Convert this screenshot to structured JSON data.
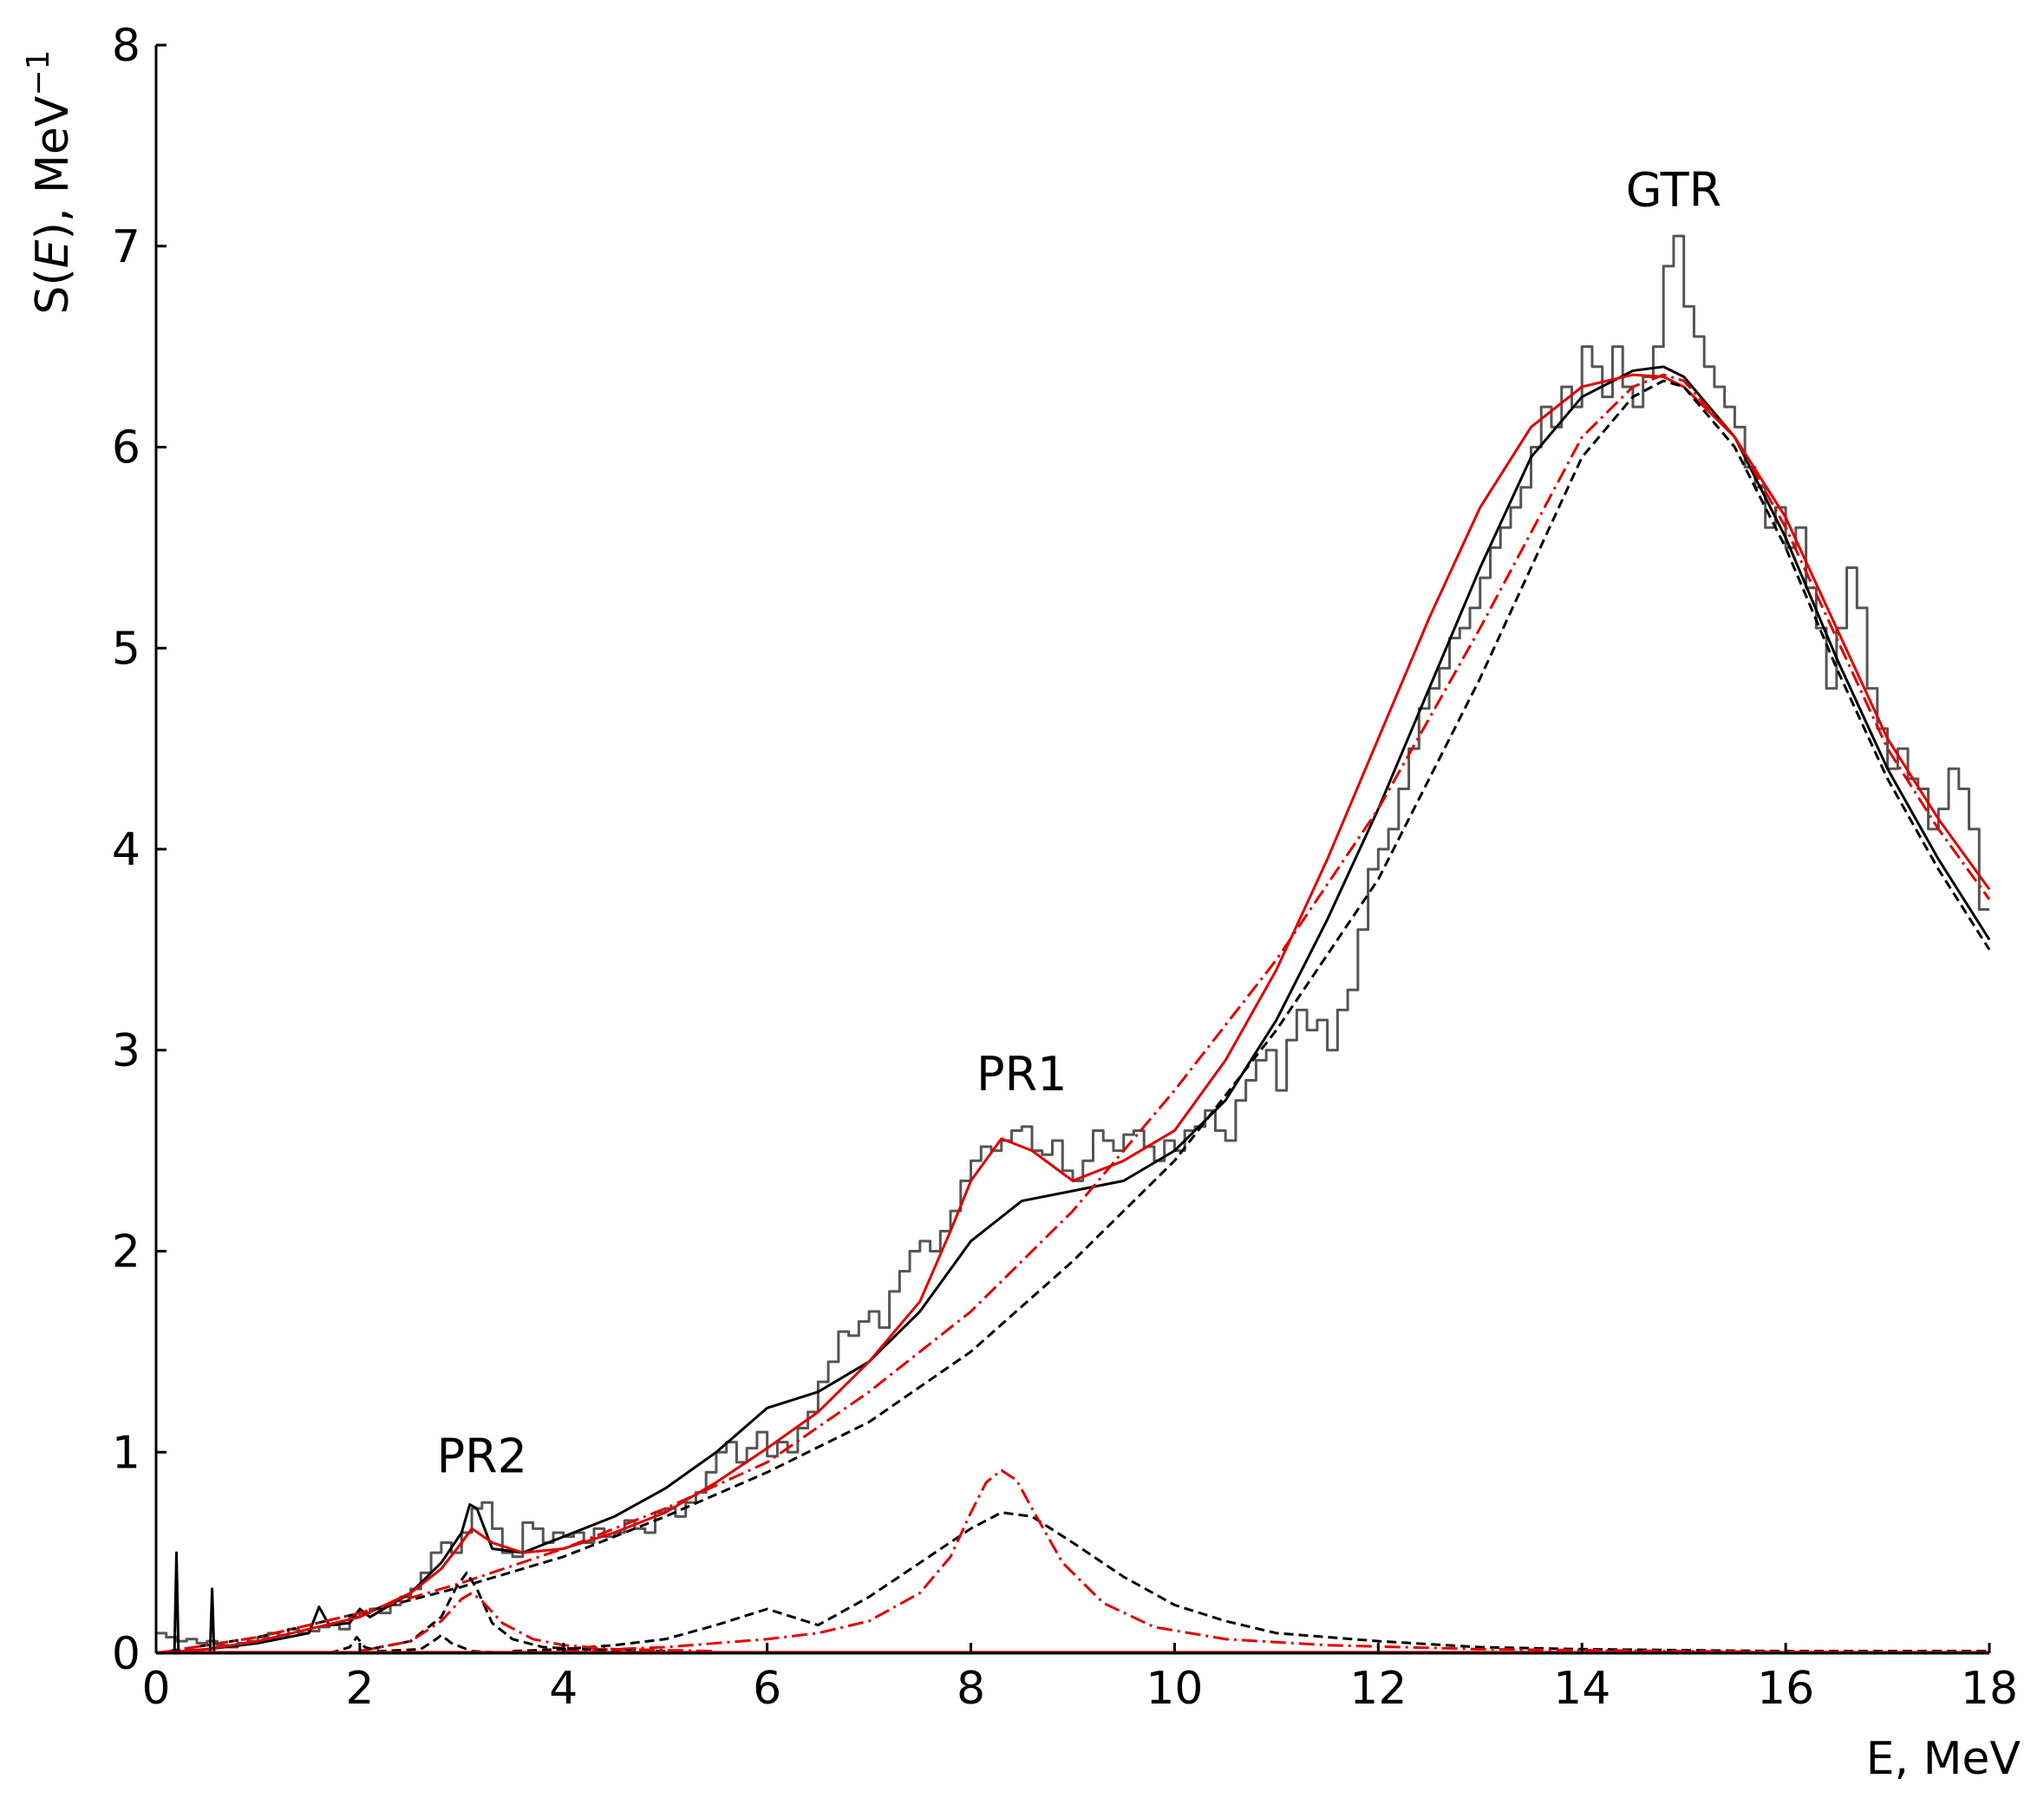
{
  "chart_data": {
    "type": "line",
    "xlabel": "E, MeV",
    "ylabel_prefix": "S(",
    "ylabel_var": "E",
    "ylabel_suffix": "), MeV",
    "ylabel_sup": "−1",
    "xlim": [
      0,
      18
    ],
    "ylim": [
      0,
      8
    ],
    "xticks": [
      0,
      2,
      4,
      6,
      8,
      10,
      12,
      14,
      16,
      18
    ],
    "yticks": [
      0,
      1,
      2,
      3,
      4,
      5,
      6,
      7,
      8
    ],
    "grid": false,
    "colors": {
      "experiment": "#555555",
      "black": "#000000",
      "red": "#e00000"
    },
    "annotations": [
      {
        "text": "GTR",
        "x": 14.9,
        "y": 7.2
      },
      {
        "text": "PR1",
        "x": 8.5,
        "y": 2.8
      },
      {
        "text": "PR2",
        "x": 3.2,
        "y": 0.9
      }
    ],
    "series": [
      {
        "style": "step",
        "color": "experiment",
        "bin_width": 0.1,
        "x": [
          0,
          0.1,
          0.2,
          0.3,
          0.4,
          0.5,
          0.6,
          0.7,
          0.8,
          0.9,
          1,
          1.1,
          1.2,
          1.3,
          1.4,
          1.5,
          1.6,
          1.7,
          1.8,
          1.9,
          2,
          2.1,
          2.2,
          2.3,
          2.4,
          2.5,
          2.6,
          2.7,
          2.8,
          2.9,
          3,
          3.1,
          3.2,
          3.3,
          3.4,
          3.5,
          3.6,
          3.7,
          3.8,
          3.9,
          4,
          4.1,
          4.2,
          4.3,
          4.4,
          4.5,
          4.6,
          4.7,
          4.8,
          4.9,
          5,
          5.1,
          5.2,
          5.3,
          5.4,
          5.5,
          5.6,
          5.7,
          5.8,
          5.9,
          6,
          6.1,
          6.2,
          6.3,
          6.4,
          6.5,
          6.6,
          6.7,
          6.8,
          6.9,
          7,
          7.1,
          7.2,
          7.3,
          7.4,
          7.5,
          7.6,
          7.7,
          7.8,
          7.9,
          8,
          8.1,
          8.2,
          8.3,
          8.4,
          8.5,
          8.6,
          8.7,
          8.8,
          8.9,
          9,
          9.1,
          9.2,
          9.3,
          9.4,
          9.5,
          9.6,
          9.7,
          9.8,
          9.9,
          10,
          10.1,
          10.2,
          10.3,
          10.4,
          10.5,
          10.6,
          10.7,
          10.8,
          10.9,
          11,
          11.1,
          11.2,
          11.3,
          11.4,
          11.5,
          11.6,
          11.7,
          11.8,
          11.9,
          12,
          12.1,
          12.2,
          12.3,
          12.4,
          12.5,
          12.6,
          12.7,
          12.8,
          12.9,
          13,
          13.1,
          13.2,
          13.3,
          13.4,
          13.5,
          13.6,
          13.7,
          13.8,
          13.9,
          14,
          14.1,
          14.2,
          14.3,
          14.4,
          14.5,
          14.6,
          14.7,
          14.8,
          14.9,
          15,
          15.1,
          15.2,
          15.3,
          15.4,
          15.5,
          15.6,
          15.7,
          15.8,
          15.9,
          16,
          16.1,
          16.2,
          16.3,
          16.4,
          16.5,
          16.6,
          16.7,
          16.8,
          16.9,
          17,
          17.1,
          17.2,
          17.3,
          17.4,
          17.5,
          17.6,
          17.7,
          17.8,
          17.9
        ],
        "y": [
          0.1,
          0.08,
          0.06,
          0.07,
          0.05,
          0.06,
          0.04,
          0.03,
          0.05,
          0.06,
          0.08,
          0.1,
          0.09,
          0.12,
          0.1,
          0.11,
          0.13,
          0.14,
          0.12,
          0.18,
          0.2,
          0.22,
          0.2,
          0.24,
          0.28,
          0.32,
          0.4,
          0.5,
          0.55,
          0.5,
          0.6,
          0.72,
          0.75,
          0.62,
          0.5,
          0.48,
          0.65,
          0.62,
          0.55,
          0.6,
          0.58,
          0.6,
          0.55,
          0.62,
          0.58,
          0.6,
          0.66,
          0.62,
          0.6,
          0.7,
          0.72,
          0.68,
          0.75,
          0.8,
          0.9,
          1.0,
          1.05,
          0.95,
          1.02,
          1.1,
          0.98,
          1.05,
          1.0,
          1.12,
          1.2,
          1.35,
          1.45,
          1.6,
          1.58,
          1.65,
          1.7,
          1.62,
          1.8,
          1.9,
          2.0,
          2.05,
          2.0,
          2.1,
          2.2,
          2.35,
          2.45,
          2.52,
          2.5,
          2.55,
          2.6,
          2.62,
          2.5,
          2.48,
          2.55,
          2.4,
          2.35,
          2.45,
          2.6,
          2.55,
          2.5,
          2.58,
          2.6,
          2.52,
          2.45,
          2.55,
          2.5,
          2.6,
          2.62,
          2.7,
          2.6,
          2.55,
          2.75,
          2.85,
          2.95,
          3.0,
          2.8,
          3.05,
          3.2,
          3.1,
          3.15,
          3.0,
          3.2,
          3.3,
          3.6,
          3.9,
          4.0,
          4.1,
          4.3,
          4.5,
          4.7,
          4.8,
          4.9,
          5.05,
          5.1,
          5.2,
          5.35,
          5.5,
          5.6,
          5.7,
          5.8,
          6.0,
          6.2,
          6.1,
          6.3,
          6.2,
          6.5,
          6.4,
          6.25,
          6.5,
          6.3,
          6.2,
          6.35,
          6.5,
          6.9,
          7.05,
          6.7,
          6.55,
          6.4,
          6.3,
          6.2,
          6.1,
          5.9,
          5.8,
          5.6,
          5.7,
          5.5,
          5.6,
          5.3,
          5.1,
          4.8,
          5.1,
          5.4,
          5.2,
          4.8,
          4.6,
          4.4,
          4.5,
          4.35,
          4.3,
          4.1,
          4.2,
          4.4,
          4.3,
          4.1,
          3.7
        ]
      },
      {
        "style": "solid",
        "color": "black",
        "x": [
          0,
          0.5,
          1,
          1.5,
          1.6,
          1.7,
          1.9,
          2,
          2.1,
          2.5,
          2.8,
          3.0,
          3.08,
          3.15,
          3.3,
          3.6,
          4,
          4.5,
          5,
          5.5,
          6,
          6.5,
          7,
          7.5,
          8,
          8.5,
          9,
          9.5,
          10,
          10.5,
          11,
          11.5,
          12,
          12.5,
          13,
          13.5,
          14,
          14.5,
          14.8,
          15,
          15.5,
          16,
          16.5,
          17,
          17.5,
          18
        ],
        "y": [
          0,
          0.02,
          0.05,
          0.1,
          0.23,
          0.14,
          0.15,
          0.22,
          0.18,
          0.3,
          0.45,
          0.6,
          0.74,
          0.72,
          0.52,
          0.5,
          0.58,
          0.68,
          0.82,
          1.0,
          1.22,
          1.3,
          1.45,
          1.7,
          2.05,
          2.25,
          2.3,
          2.35,
          2.5,
          2.75,
          3.15,
          3.65,
          4.2,
          4.8,
          5.4,
          5.95,
          6.25,
          6.38,
          6.4,
          6.35,
          6.05,
          5.55,
          4.95,
          4.4,
          3.95,
          3.55
        ]
      },
      {
        "style": "solid",
        "color": "red",
        "x": [
          0,
          0.5,
          1,
          1.5,
          2,
          2.5,
          2.8,
          3.0,
          3.1,
          3.3,
          3.6,
          4,
          4.5,
          5,
          5.5,
          6,
          6.5,
          7,
          7.5,
          7.8,
          8.0,
          8.3,
          8.6,
          9.0,
          9.5,
          10,
          10.5,
          11,
          11.5,
          12,
          12.5,
          13,
          13.5,
          14,
          14.5,
          14.8,
          15,
          15.5,
          16,
          16.5,
          17,
          17.5,
          18
        ],
        "y": [
          0,
          0.02,
          0.06,
          0.12,
          0.18,
          0.3,
          0.42,
          0.55,
          0.62,
          0.55,
          0.5,
          0.52,
          0.6,
          0.7,
          0.85,
          1.02,
          1.2,
          1.45,
          1.75,
          2.1,
          2.35,
          2.56,
          2.5,
          2.35,
          2.45,
          2.6,
          2.95,
          3.4,
          3.95,
          4.55,
          5.15,
          5.7,
          6.1,
          6.3,
          6.36,
          6.35,
          6.3,
          6.05,
          5.65,
          5.1,
          4.55,
          4.15,
          3.8
        ]
      },
      {
        "style": "dashed",
        "color": "black",
        "x": [
          0,
          1,
          2,
          3,
          4,
          5,
          6,
          7,
          8,
          9,
          10,
          11,
          12,
          13,
          14,
          14.5,
          14.8,
          15,
          15.5,
          16,
          16.5,
          17,
          17.5,
          18
        ],
        "y": [
          0,
          0.08,
          0.2,
          0.33,
          0.48,
          0.68,
          0.9,
          1.15,
          1.5,
          1.95,
          2.45,
          3.1,
          3.85,
          4.85,
          5.95,
          6.25,
          6.33,
          6.3,
          6.0,
          5.5,
          4.9,
          4.35,
          3.9,
          3.5
        ]
      },
      {
        "style": "dashdot",
        "color": "red",
        "x": [
          0,
          1,
          2,
          3,
          4,
          5,
          6,
          7,
          8,
          9,
          10,
          11,
          12,
          13,
          14,
          14.5,
          14.8,
          15,
          15.5,
          16,
          16.5,
          17,
          17.5,
          18
        ],
        "y": [
          0,
          0.08,
          0.2,
          0.35,
          0.52,
          0.72,
          0.95,
          1.3,
          1.7,
          2.2,
          2.8,
          3.45,
          4.2,
          5.1,
          6.05,
          6.3,
          6.36,
          6.33,
          6.05,
          5.6,
          5.05,
          4.5,
          4.1,
          3.75
        ]
      },
      {
        "style": "dashed",
        "color": "black",
        "x": [
          3.5,
          4,
          4.5,
          5,
          5.5,
          6,
          6.5,
          7,
          7.5,
          8,
          8.3,
          8.6,
          9,
          9.5,
          10,
          10.5,
          11,
          12,
          13,
          14,
          16,
          18
        ],
        "y": [
          0.01,
          0.02,
          0.04,
          0.07,
          0.14,
          0.22,
          0.14,
          0.28,
          0.45,
          0.62,
          0.7,
          0.68,
          0.55,
          0.38,
          0.24,
          0.16,
          0.1,
          0.06,
          0.03,
          0.02,
          0.01,
          0.01
        ]
      },
      {
        "style": "dashdot",
        "color": "red",
        "x": [
          4,
          5,
          6,
          6.5,
          7,
          7.5,
          7.8,
          8.0,
          8.15,
          8.3,
          8.45,
          8.6,
          8.9,
          9.3,
          9.8,
          10.5,
          11.5,
          13,
          15,
          18
        ],
        "y": [
          0.01,
          0.03,
          0.07,
          0.1,
          0.16,
          0.3,
          0.48,
          0.7,
          0.85,
          0.91,
          0.86,
          0.72,
          0.45,
          0.25,
          0.13,
          0.07,
          0.04,
          0.02,
          0.01,
          0.0
        ]
      },
      {
        "style": "dashed",
        "color": "black",
        "x": [
          2.0,
          2.5,
          2.8,
          2.95,
          3.05,
          3.15,
          3.3,
          3.5,
          3.8,
          4.2,
          5.0
        ],
        "y": [
          0.01,
          0.06,
          0.18,
          0.33,
          0.4,
          0.32,
          0.15,
          0.07,
          0.03,
          0.02,
          0.01
        ]
      },
      {
        "style": "dashdot",
        "color": "red",
        "x": [
          2.0,
          2.5,
          2.8,
          3.0,
          3.1,
          3.2,
          3.4,
          3.7,
          4.0,
          4.5,
          5.5
        ],
        "y": [
          0.01,
          0.06,
          0.16,
          0.27,
          0.3,
          0.26,
          0.15,
          0.07,
          0.04,
          0.02,
          0.01
        ]
      },
      {
        "style": "dashed",
        "color": "black",
        "x": [
          1.7,
          1.9,
          1.97,
          2.05,
          2.2,
          2.6,
          2.75,
          2.8,
          2.9,
          3.1,
          3.5
        ],
        "y": [
          0.0,
          0.03,
          0.08,
          0.03,
          0.01,
          0.02,
          0.07,
          0.09,
          0.05,
          0.01,
          0.0
        ]
      },
      {
        "style": "solid",
        "color": "black",
        "x": [
          0.18,
          0.2,
          0.22,
          0.53,
          0.55,
          0.57
        ],
        "y": [
          0,
          0.5,
          0,
          0,
          0.32,
          0
        ]
      },
      {
        "style": "solid",
        "color": "red",
        "x": [
          0,
          18
        ],
        "y": [
          0.005,
          0.005
        ]
      }
    ]
  }
}
